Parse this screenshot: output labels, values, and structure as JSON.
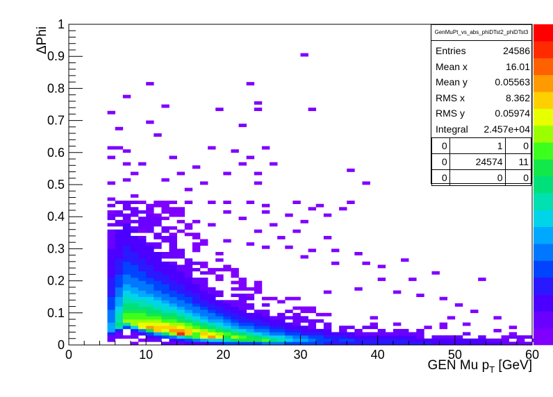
{
  "chart_data": {
    "type": "heatmap",
    "title": "",
    "xlabel": "GEN Mu p_T [GeV]",
    "ylabel": "ΔPhi",
    "xlim": [
      0,
      60
    ],
    "ylim": [
      0,
      1
    ],
    "x_ticks": [
      "0",
      "10",
      "20",
      "30",
      "40",
      "50",
      "60"
    ],
    "y_ticks": [
      "0",
      "0.1",
      "0.2",
      "0.3",
      "0.4",
      "0.5",
      "0.6",
      "0.7",
      "0.8",
      "0.9",
      "1"
    ],
    "bin_width_x": 1,
    "bin_width_y": 0.01,
    "palette": [
      "#7F00FF",
      "#6A00FF",
      "#4B00FF",
      "#2A18FF",
      "#0044FF",
      "#0077FF",
      "#00A8FF",
      "#00D4E8",
      "#00E0B0",
      "#00E07A",
      "#12E84A",
      "#3CFF1E",
      "#9CFF00",
      "#E8FF00",
      "#FFD000",
      "#FF9A00",
      "#FF6000",
      "#FF2A00",
      "#FF0000"
    ],
    "core_profile": [
      {
        "x": 5,
        "peak": 0.045,
        "max_z": 6
      },
      {
        "x": 7,
        "peak": 0.07,
        "max_z": 13
      },
      {
        "x": 10,
        "peak": 0.05,
        "max_z": 16
      },
      {
        "x": 14,
        "peak": 0.035,
        "max_z": 18
      },
      {
        "x": 18,
        "peak": 0.025,
        "max_z": 16
      },
      {
        "x": 22,
        "peak": 0.018,
        "max_z": 13
      },
      {
        "x": 26,
        "peak": 0.014,
        "max_z": 10
      },
      {
        "x": 30,
        "peak": 0.012,
        "max_z": 7
      },
      {
        "x": 35,
        "peak": 0.01,
        "max_z": 4
      },
      {
        "x": 42,
        "peak": 0.008,
        "max_z": 3
      },
      {
        "x": 50,
        "peak": 0.006,
        "max_z": 2
      },
      {
        "x": 60,
        "peak": 0.005,
        "max_z": 1
      }
    ],
    "sparse_bins": [
      [
        30,
        0.9
      ],
      [
        10,
        0.81
      ],
      [
        23,
        0.81
      ],
      [
        7,
        0.77
      ],
      [
        24,
        0.75
      ],
      [
        12,
        0.74
      ],
      [
        24,
        0.73
      ],
      [
        5,
        0.72
      ],
      [
        19,
        0.73
      ],
      [
        31,
        0.73
      ],
      [
        6,
        0.67
      ],
      [
        22,
        0.68
      ],
      [
        10,
        0.69
      ],
      [
        11,
        0.65
      ],
      [
        5,
        0.61
      ],
      [
        6,
        0.61
      ],
      [
        7,
        0.6
      ],
      [
        18,
        0.61
      ],
      [
        21,
        0.6
      ],
      [
        25,
        0.61
      ],
      [
        5,
        0.58
      ],
      [
        7,
        0.56
      ],
      [
        9,
        0.56
      ],
      [
        13,
        0.58
      ],
      [
        23,
        0.58
      ],
      [
        26,
        0.56
      ],
      [
        16,
        0.55
      ],
      [
        22,
        0.56
      ],
      [
        8,
        0.53
      ],
      [
        14,
        0.53
      ],
      [
        20,
        0.53
      ],
      [
        24,
        0.53
      ],
      [
        36,
        0.54
      ],
      [
        5,
        0.5
      ],
      [
        7,
        0.51
      ],
      [
        12,
        0.51
      ],
      [
        17,
        0.5
      ],
      [
        24,
        0.5
      ],
      [
        38,
        0.5
      ],
      [
        15,
        0.48
      ],
      [
        8,
        0.46
      ],
      [
        5,
        0.45
      ],
      [
        9,
        0.44
      ],
      [
        12,
        0.44
      ],
      [
        13,
        0.44
      ],
      [
        15,
        0.44
      ],
      [
        18,
        0.44
      ],
      [
        20,
        0.44
      ],
      [
        23,
        0.44
      ],
      [
        25,
        0.43
      ],
      [
        29,
        0.44
      ],
      [
        32,
        0.43
      ],
      [
        36,
        0.44
      ],
      [
        31,
        0.42
      ],
      [
        35,
        0.42
      ],
      [
        5,
        0.41
      ],
      [
        10,
        0.41
      ],
      [
        14,
        0.41
      ],
      [
        20,
        0.41
      ],
      [
        25,
        0.41
      ],
      [
        28,
        0.4
      ],
      [
        33,
        0.4
      ],
      [
        7,
        0.38
      ],
      [
        12,
        0.39
      ],
      [
        16,
        0.38
      ],
      [
        22,
        0.39
      ],
      [
        26,
        0.37
      ],
      [
        30,
        0.38
      ],
      [
        18,
        0.37
      ],
      [
        9,
        0.35
      ],
      [
        24,
        0.35
      ],
      [
        29,
        0.35
      ],
      [
        27,
        0.33
      ],
      [
        33,
        0.33
      ],
      [
        20,
        0.32
      ],
      [
        23,
        0.31
      ],
      [
        25,
        0.3
      ],
      [
        28,
        0.3
      ],
      [
        31,
        0.29
      ],
      [
        34,
        0.29
      ],
      [
        37,
        0.28
      ],
      [
        30,
        0.27
      ],
      [
        34,
        0.25
      ],
      [
        38,
        0.25
      ],
      [
        43,
        0.26
      ],
      [
        40,
        0.24
      ],
      [
        47,
        0.22
      ],
      [
        40,
        0.2
      ],
      [
        44,
        0.2
      ],
      [
        37,
        0.17
      ],
      [
        42,
        0.16
      ],
      [
        33,
        0.16
      ],
      [
        53,
        0.2
      ],
      [
        45,
        0.15
      ],
      [
        48,
        0.14
      ],
      [
        50,
        0.12
      ],
      [
        52,
        0.1
      ],
      [
        55,
        0.08
      ],
      [
        57,
        0.05
      ],
      [
        49,
        0.08
      ],
      [
        51,
        0.06
      ],
      [
        56,
        0.02
      ],
      [
        58,
        0.01
      ],
      [
        60,
        0.01
      ]
    ]
  },
  "palette_axis": {
    "colors": [
      "#7F00FF",
      "#6A00FF",
      "#4B00FF",
      "#2A18FF",
      "#0044FF",
      "#0077FF",
      "#00A8FF",
      "#00D4E8",
      "#00E0B0",
      "#00E07A",
      "#12E84A",
      "#3CFF1E",
      "#9CFF00",
      "#E8FF00",
      "#FFD000",
      "#FF9A00",
      "#FF6000",
      "#FF2A00",
      "#FF0000"
    ]
  },
  "stats": {
    "histogram_name": "GenMuPt_vs_abs_phiDTst2_phiDTst3",
    "rows": [
      {
        "label": "Entries",
        "value": "24586"
      },
      {
        "label": "Mean x",
        "value": "16.01"
      },
      {
        "label": "Mean y",
        "value": "0.05563"
      },
      {
        "label": "RMS x",
        "value": "8.362"
      },
      {
        "label": "RMS y",
        "value": "0.05974"
      },
      {
        "label": "Integral",
        "value": "2.457e+04"
      }
    ],
    "overflow": [
      [
        "0",
        "1",
        "0"
      ],
      [
        "0",
        "24574",
        "11"
      ],
      [
        "0",
        "0",
        "0"
      ]
    ]
  }
}
